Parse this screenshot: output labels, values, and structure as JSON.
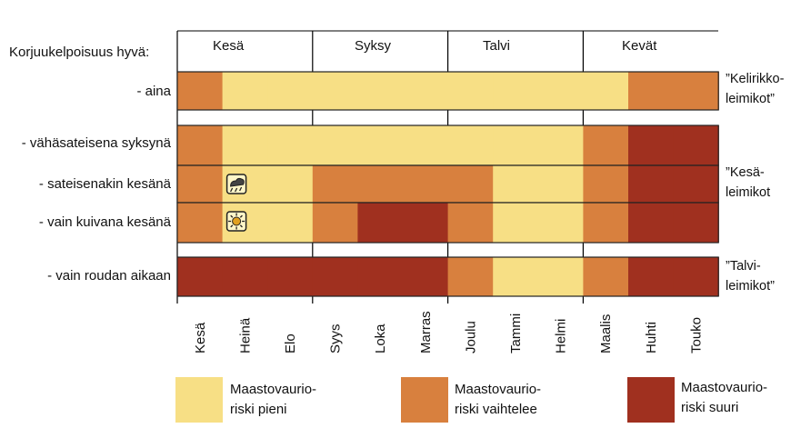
{
  "title": "Korjuukelpoisuus hyvä:",
  "seasons": [
    "Kesä",
    "Syksy",
    "Talvi",
    "Kevät"
  ],
  "months": [
    "Kesä",
    "Heinä",
    "Elo",
    "Syys",
    "Loka",
    "Marras",
    "Joulu",
    "Tammi",
    "Helmi",
    "Maalis",
    "Huhti",
    "Touko"
  ],
  "colors": {
    "low": "#f7df85",
    "medium": "#d8803e",
    "high": "#a0301f"
  },
  "rows": [
    {
      "label": "- aina",
      "risk": [
        "medium",
        "low",
        "low",
        "low",
        "low",
        "low",
        "low",
        "low",
        "low",
        "low",
        "medium",
        "medium"
      ]
    },
    {
      "label": "- vähäsateisena syksynä",
      "risk": [
        "medium",
        "low",
        "low",
        "low",
        "low",
        "low",
        "low",
        "low",
        "low",
        "medium",
        "high",
        "high"
      ]
    },
    {
      "label": "- sateisenakin kesänä",
      "icon": "rain-icon",
      "risk": [
        "medium",
        "low",
        "low",
        "medium",
        "medium",
        "medium",
        "medium",
        "low",
        "low",
        "medium",
        "high",
        "high"
      ]
    },
    {
      "label": "- vain kuivana kesänä",
      "icon": "sun-icon",
      "risk": [
        "medium",
        "low",
        "low",
        "medium",
        "high",
        "high",
        "medium",
        "low",
        "low",
        "medium",
        "high",
        "high"
      ]
    },
    {
      "label": "- vain roudan aikaan",
      "risk": [
        "high",
        "high",
        "high",
        "high",
        "high",
        "high",
        "medium",
        "low",
        "low",
        "medium",
        "high",
        "high"
      ]
    }
  ],
  "side_labels": [
    "”Kelirikko-\nleimikot”",
    "”Kesä-\nleimikot",
    "”Talvi-\nleimikot”"
  ],
  "legend": [
    {
      "key": "low",
      "text": "Maastovaurio-\nriski pieni"
    },
    {
      "key": "medium",
      "text": "Maastovaurio-\nriski vaihtelee"
    },
    {
      "key": "high",
      "text": "Maastovaurio-\nriski suuri"
    }
  ]
}
